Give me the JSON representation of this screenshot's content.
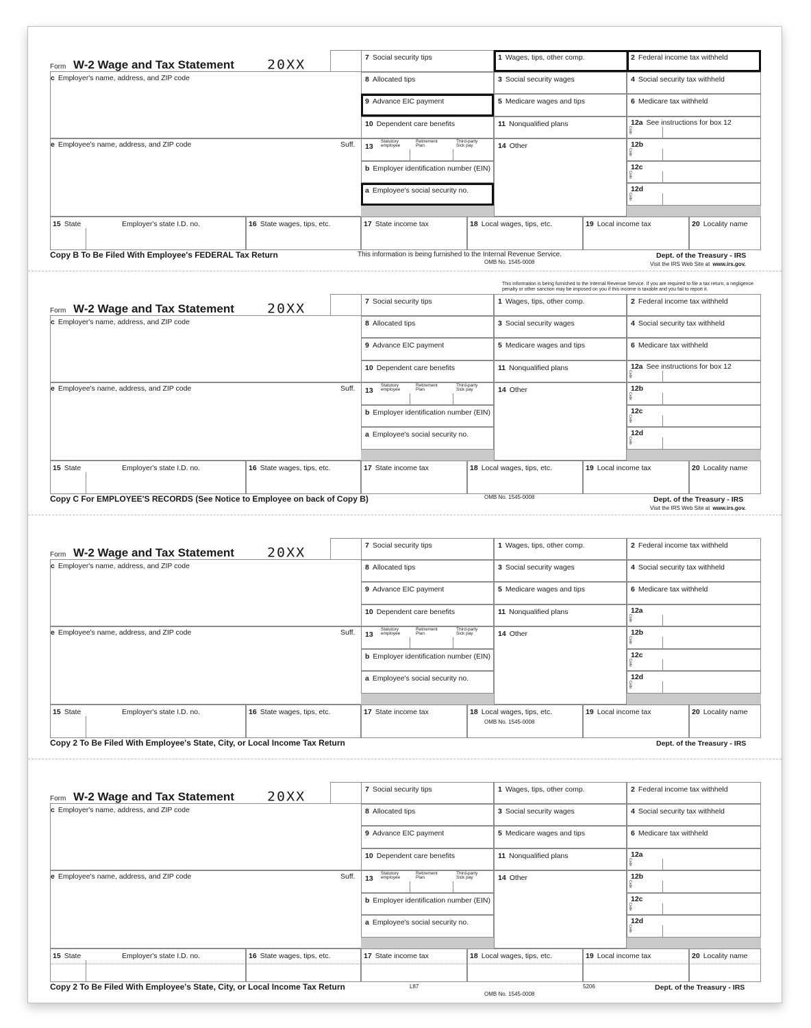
{
  "labels": {
    "form": "Form",
    "title": "W-2 Wage and Tax Statement",
    "year": "20XX",
    "c": {
      "num": "c",
      "text": "Employer's name, address, and ZIP code"
    },
    "e": {
      "num": "e",
      "text": "Employee's name, address, and ZIP code"
    },
    "suff": "Suff.",
    "b7": {
      "num": "7",
      "text": "Social security tips"
    },
    "b8": {
      "num": "8",
      "text": "Allocated tips"
    },
    "b9": {
      "num": "9",
      "text": "Advance EIC payment"
    },
    "b10": {
      "num": "10",
      "text": "Dependent care benefits"
    },
    "b13": {
      "num": "13",
      "statutory": "Statutory employee",
      "retirement": "Retirement Plan",
      "thirdparty": "Third-party Sick pay"
    },
    "bb": {
      "num": "b",
      "text": "Employer identification number (EIN)"
    },
    "ba": {
      "num": "a",
      "text": "Employee's social security no."
    },
    "b1": {
      "num": "1",
      "text": "Wages, tips, other comp."
    },
    "b3": {
      "num": "3",
      "text": "Social security wages"
    },
    "b5": {
      "num": "5",
      "text": "Medicare wages and tips"
    },
    "b11": {
      "num": "11",
      "text": "Nonqualified plans"
    },
    "b14": {
      "num": "14",
      "text": "Other"
    },
    "b2": {
      "num": "2",
      "text": "Federal income tax withheld"
    },
    "b4": {
      "num": "4",
      "text": "Social security tax withheld"
    },
    "b6": {
      "num": "6",
      "text": "Medicare tax withheld"
    },
    "b12a": "12a",
    "b12b": "12b",
    "b12c": "12c",
    "b12d": "12d",
    "code": "Code",
    "b15": {
      "num": "15",
      "text": "State"
    },
    "b15id": "Employer's state I.D. no.",
    "b16": {
      "num": "16",
      "text": "State wages, tips, etc."
    },
    "b17": {
      "num": "17",
      "text": "State income tax"
    },
    "b18": {
      "num": "18",
      "text": "Local wages, tips, etc."
    },
    "b19": {
      "num": "19",
      "text": "Local income tax"
    },
    "b20": {
      "num": "20",
      "text": "Locality name"
    }
  },
  "forms": [
    {
      "copy": "Copy B To Be Filed With Employee's FEDERAL Tax Return",
      "box12a_note": "See instructions for box 12",
      "irs_notice": "This information is being furnished to the Internal Revenue Service.",
      "omb": "OMB No. 1545-0008",
      "dept": "Dept. of the Treasury - IRS",
      "visit": "Visit the IRS Web Site at",
      "url": "www.irs.gov."
    },
    {
      "top_notice": "This information is being furnished to the Internal Revenue Service. If you are required to file a tax return, a negligence penalty or other sanction may be imposed on you if this income is taxable and you fail to report it.",
      "copy": "Copy C For EMPLOYEE'S RECORDS (See Notice to  Employee on back of Copy B)",
      "box12a_note": "See instructions for box 12",
      "omb": "OMB No. 1545-0008",
      "dept": "Dept. of the Treasury - IRS",
      "visit": "Visit the IRS Web Site at",
      "url": "www.irs.gov."
    },
    {
      "copy": "Copy 2 To Be Filed With Employee's State, City, or Local Income Tax Return",
      "omb": "OMB No. 1545-0008",
      "dept": "Dept. of the Treasury - IRS"
    },
    {
      "copy": "Copy 2 To Be Filed With Employee's State, City, or Local Income Tax Return",
      "form_code": "L87",
      "omb": "OMB No. 1545-0008",
      "product_code": "5206",
      "dept": "Dept. of the Treasury - IRS"
    }
  ]
}
